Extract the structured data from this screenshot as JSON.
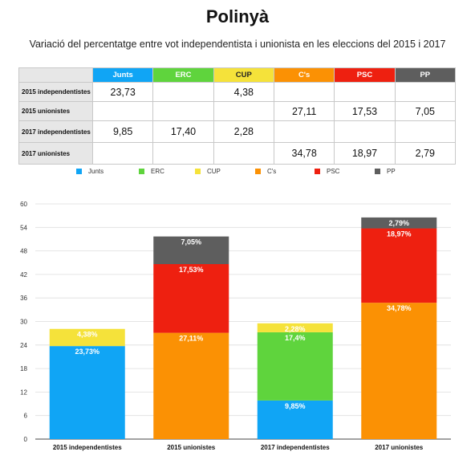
{
  "title": "Polinyà",
  "subtitle": "Variació del percentatge entre vot independentista i unionista en les eleccions del 2015 i 2017",
  "colors": {
    "Junts": "#10a5f5",
    "ERC": "#5fd43d",
    "CUP": "#f5e23a",
    "Cs": "#fb9104",
    "PSC": "#ee2010",
    "PP": "#5e5e5e"
  },
  "table": {
    "headers": [
      "Junts",
      "ERC",
      "CUP",
      "C's",
      "PSC",
      "PP"
    ],
    "rows": [
      {
        "label": "2015 independentistes",
        "cells": [
          "23,73",
          "",
          "4,38",
          "",
          "",
          ""
        ]
      },
      {
        "label": "2015 unionistes",
        "cells": [
          "",
          "",
          "",
          "27,11",
          "17,53",
          "7,05"
        ]
      },
      {
        "label": "2017 independentistes",
        "cells": [
          "9,85",
          "17,40",
          "2,28",
          "",
          "",
          ""
        ]
      },
      {
        "label": "2017 unionistes",
        "cells": [
          "",
          "",
          "",
          "34,78",
          "18,97",
          "2,79"
        ]
      }
    ]
  },
  "legend": [
    "Junts",
    "ERC",
    "CUP",
    "C's",
    "PSC",
    "PP"
  ],
  "chart_data": {
    "type": "bar",
    "stacked": true,
    "categories": [
      "2015 independentistes",
      "2015 unionistes",
      "2017 independentistes",
      "2017 unionistes"
    ],
    "series": [
      {
        "name": "Junts",
        "color": "#10a5f5",
        "values": [
          23.73,
          0,
          9.85,
          0
        ],
        "labels": [
          "23,73%",
          "",
          "9,85%",
          ""
        ]
      },
      {
        "name": "ERC",
        "color": "#5fd43d",
        "values": [
          0,
          0,
          17.4,
          0
        ],
        "labels": [
          "",
          "",
          "17,4%",
          ""
        ]
      },
      {
        "name": "CUP",
        "color": "#f5e23a",
        "values": [
          4.38,
          0,
          2.28,
          0
        ],
        "labels": [
          "4,38%",
          "",
          "2,28%",
          ""
        ]
      },
      {
        "name": "C's",
        "color": "#fb9104",
        "values": [
          0,
          27.11,
          0,
          34.78
        ],
        "labels": [
          "",
          "27,11%",
          "",
          "34,78%"
        ]
      },
      {
        "name": "PSC",
        "color": "#ee2010",
        "values": [
          0,
          17.53,
          0,
          18.97
        ],
        "labels": [
          "",
          "17,53%",
          "",
          "18,97%"
        ]
      },
      {
        "name": "PP",
        "color": "#5e5e5e",
        "values": [
          0,
          7.05,
          0,
          2.79
        ],
        "labels": [
          "",
          "7,05%",
          "",
          "2,79%"
        ]
      }
    ],
    "ylim": [
      0,
      60
    ],
    "yticks": [
      0,
      6,
      12,
      18,
      24,
      30,
      36,
      42,
      48,
      54,
      60
    ],
    "grid": true,
    "legend_position": "top"
  }
}
